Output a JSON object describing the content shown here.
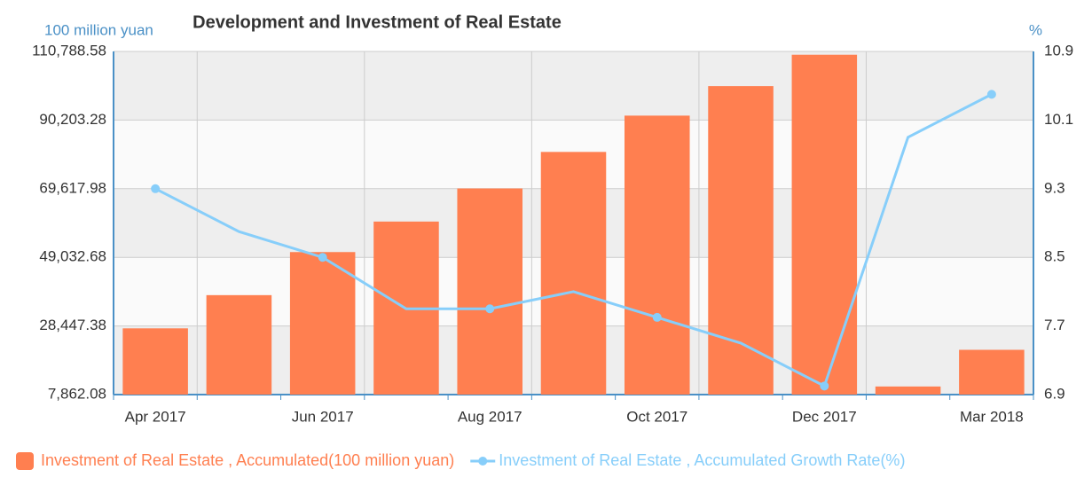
{
  "chart_data": {
    "type": "bar-line",
    "title": "Development and Investment of Real Estate",
    "y_axis_label": "100 million yuan",
    "y2_axis_label": "%",
    "categories": [
      "Apr 2017",
      null,
      "Jun 2017",
      null,
      "Aug 2017",
      null,
      "Oct 2017",
      null,
      "Dec 2017",
      null,
      "Mar 2018"
    ],
    "series": [
      {
        "name": "Investment of Real Estate , Accumulated(100 million yuan)",
        "type": "bar",
        "color": "#ff7f50",
        "values": [
          27732,
          37693,
          50610,
          59761,
          69694,
          80644,
          91533,
          100387,
          109799,
          10292,
          21291
        ]
      },
      {
        "name": "Investment of Real Estate , Accumulated Growth Rate(%)",
        "type": "line",
        "axis": "y2",
        "color": "#87cefa",
        "values": [
          9.3,
          8.8,
          8.5,
          7.9,
          7.9,
          8.1,
          7.8,
          7.5,
          7.0,
          9.9,
          10.4
        ]
      }
    ],
    "ylim": [
      7862.08,
      110788.58
    ],
    "yticks": [
      {
        "value": 7862.08,
        "label": "7,862.08"
      },
      {
        "value": 28447.38,
        "label": "28,447.38"
      },
      {
        "value": 49032.68,
        "label": "49,032.68"
      },
      {
        "value": 69617.98,
        "label": "69,617.98"
      },
      {
        "value": 90203.28,
        "label": "90,203.28"
      },
      {
        "value": 110788.58,
        "label": "110,788.58"
      }
    ],
    "y2lim": [
      6.9,
      10.9
    ],
    "y2ticks": [
      6.9,
      7.7,
      8.5,
      9.3,
      10.1,
      10.9
    ],
    "grid": true,
    "legend": "bottom"
  }
}
